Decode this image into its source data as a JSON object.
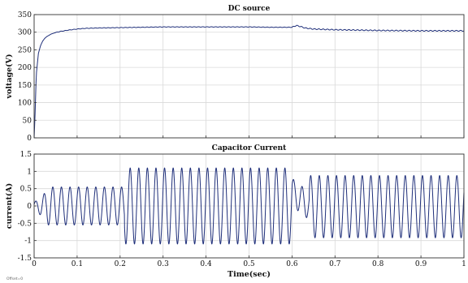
{
  "footer_note": "Offset=0",
  "chart_data": [
    {
      "type": "line",
      "title": "DC source",
      "xlabel": "",
      "ylabel": "voltage(V)",
      "xlim": [
        0,
        1
      ],
      "ylim": [
        0,
        350
      ],
      "yticks": [
        0,
        50,
        100,
        150,
        200,
        250,
        300,
        350
      ],
      "xticks": [
        0,
        0.1,
        0.2,
        0.3,
        0.4,
        0.5,
        0.6,
        0.7,
        0.8,
        0.9,
        1
      ],
      "xtick_labels": [
        "",
        "",
        "",
        "",
        "",
        "",
        "",
        "",
        "",
        "",
        ""
      ],
      "grid": true,
      "line_color": "#1f2f7a",
      "series": [
        {
          "x": [
            0,
            0.002,
            0.005,
            0.01,
            0.015,
            0.02,
            0.025,
            0.03,
            0.04,
            0.05,
            0.06,
            0.08,
            0.1,
            0.12,
            0.15,
            0.2,
            0.25,
            0.3,
            0.4,
            0.5,
            0.55,
            0.6,
            0.61,
            0.62,
            0.63,
            0.65,
            0.7,
            0.8,
            0.9,
            1.0
          ],
          "y": [
            0,
            60,
            180,
            240,
            262,
            275,
            283,
            288,
            295,
            299,
            302,
            306,
            309,
            311,
            312,
            313,
            314,
            315,
            315,
            315,
            314,
            314,
            319,
            316,
            312,
            309,
            307,
            305,
            304,
            304
          ]
        }
      ]
    },
    {
      "type": "line",
      "title": "Capacitor Current",
      "xlabel": "Time(sec)",
      "ylabel": "current(A)",
      "xlim": [
        0,
        1
      ],
      "ylim": [
        -1.5,
        1.5
      ],
      "yticks": [
        -1.5,
        -1,
        -0.5,
        0,
        0.5,
        1,
        1.5
      ],
      "ytick_labels": [
        "-1.5",
        "-1",
        "-0.5",
        "0",
        "0.5",
        "1",
        "1.5"
      ],
      "xticks": [
        0,
        0.1,
        0.2,
        0.3,
        0.4,
        0.5,
        0.6,
        0.7,
        0.8,
        0.9,
        1
      ],
      "xtick_labels": [
        "0",
        "0.1",
        "0.2",
        "0.3",
        "0.4",
        "0.5",
        "0.6",
        "0.7",
        "0.8",
        "0.9",
        "1"
      ],
      "grid": true,
      "line_color": "#1f2f7a",
      "series": [
        {
          "frequency_hz": 50,
          "segments": [
            {
              "x_start": 0.0,
              "x_end": 0.21,
              "amplitude": 0.55,
              "offset": 0.0
            },
            {
              "x_start": 0.21,
              "x_end": 0.6,
              "amplitude": 1.1,
              "offset": 0.0
            },
            {
              "x_start": 0.6,
              "x_end": 0.64,
              "amplitude": 0.4,
              "offset": 0.4
            },
            {
              "x_start": 0.64,
              "x_end": 1.0,
              "amplitude": 0.9,
              "offset": -0.02
            }
          ]
        }
      ]
    }
  ]
}
